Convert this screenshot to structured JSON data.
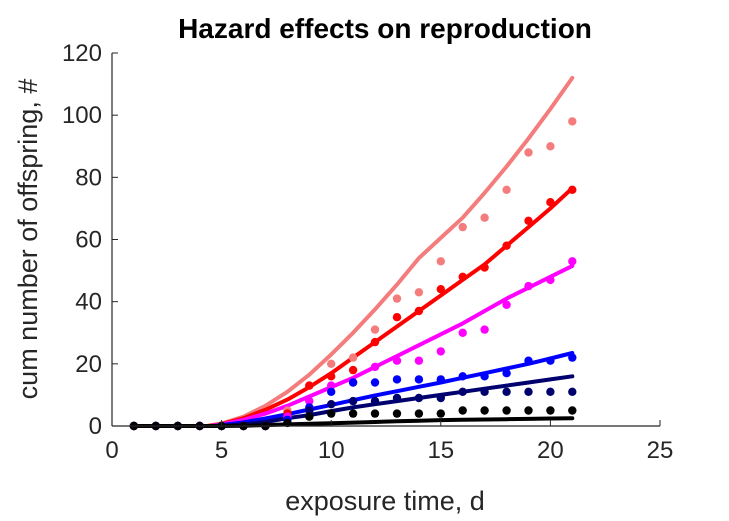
{
  "chart_data": {
    "type": "scatter",
    "title": "Hazard effects on reproduction",
    "xlabel": "exposure time, d",
    "ylabel": "cum number of offspring, #",
    "xlim": [
      0,
      25
    ],
    "ylim": [
      0,
      120
    ],
    "xticks": [
      0,
      5,
      10,
      15,
      20,
      25
    ],
    "yticks": [
      0,
      20,
      40,
      60,
      80,
      100,
      120
    ],
    "grid": false,
    "legend": "none",
    "series": [
      {
        "color": "#f47c7c",
        "points": [
          [
            1,
            0
          ],
          [
            2,
            0
          ],
          [
            3,
            0
          ],
          [
            4,
            0
          ],
          [
            5,
            0
          ],
          [
            6,
            0
          ],
          [
            7,
            0
          ],
          [
            8,
            5
          ],
          [
            9,
            13
          ],
          [
            10,
            20
          ],
          [
            11,
            22
          ],
          [
            12,
            31
          ],
          [
            13,
            41
          ],
          [
            14,
            43
          ],
          [
            15,
            53
          ],
          [
            16,
            64
          ],
          [
            17,
            67
          ],
          [
            18,
            76
          ],
          [
            19,
            88
          ],
          [
            20,
            90
          ],
          [
            21,
            98
          ]
        ],
        "fit": [
          [
            1,
            0
          ],
          [
            4.3,
            0
          ],
          [
            5,
            0.8
          ],
          [
            6,
            3
          ],
          [
            7,
            6.5
          ],
          [
            8,
            11
          ],
          [
            9,
            16.5
          ],
          [
            10,
            23
          ],
          [
            11,
            30
          ],
          [
            12,
            37.5
          ],
          [
            13,
            45.5
          ],
          [
            14,
            54
          ],
          [
            15,
            60.5
          ],
          [
            16,
            67
          ],
          [
            17,
            75
          ],
          [
            18,
            83.5
          ],
          [
            19,
            92.5
          ],
          [
            20,
            102
          ],
          [
            21,
            112
          ]
        ]
      },
      {
        "color": "#ff0000",
        "points": [
          [
            1,
            0
          ],
          [
            2,
            0
          ],
          [
            3,
            0
          ],
          [
            4,
            0
          ],
          [
            5,
            0
          ],
          [
            6,
            0
          ],
          [
            7,
            0
          ],
          [
            8,
            4
          ],
          [
            9,
            13
          ],
          [
            10,
            16
          ],
          [
            11,
            18
          ],
          [
            12,
            27
          ],
          [
            13,
            35
          ],
          [
            14,
            37
          ],
          [
            15,
            44
          ],
          [
            16,
            48
          ],
          [
            17,
            51
          ],
          [
            18,
            58
          ],
          [
            19,
            66
          ],
          [
            20,
            72
          ],
          [
            21,
            76
          ]
        ],
        "fit": [
          [
            1,
            0
          ],
          [
            4.4,
            0
          ],
          [
            5,
            0.6
          ],
          [
            6,
            2.5
          ],
          [
            7,
            5.2
          ],
          [
            8,
            8.5
          ],
          [
            9,
            12.5
          ],
          [
            10,
            17
          ],
          [
            11,
            22
          ],
          [
            12,
            27
          ],
          [
            13,
            32
          ],
          [
            14,
            37
          ],
          [
            15,
            42
          ],
          [
            16,
            47
          ],
          [
            17,
            52
          ],
          [
            18,
            58
          ],
          [
            19,
            64
          ],
          [
            20,
            70
          ],
          [
            21,
            76.5
          ]
        ]
      },
      {
        "color": "#ff00ff",
        "points": [
          [
            1,
            0
          ],
          [
            2,
            0
          ],
          [
            3,
            0
          ],
          [
            4,
            0
          ],
          [
            5,
            0
          ],
          [
            6,
            0
          ],
          [
            7,
            0
          ],
          [
            8,
            3
          ],
          [
            9,
            8
          ],
          [
            10,
            13
          ],
          [
            11,
            14
          ],
          [
            12,
            19
          ],
          [
            13,
            21
          ],
          [
            14,
            21
          ],
          [
            15,
            24
          ],
          [
            16,
            30
          ],
          [
            17,
            31
          ],
          [
            18,
            39
          ],
          [
            19,
            45
          ],
          [
            20,
            47
          ],
          [
            21,
            53
          ]
        ],
        "fit": [
          [
            1,
            0
          ],
          [
            4.5,
            0
          ],
          [
            5,
            0.5
          ],
          [
            6,
            2
          ],
          [
            7,
            4
          ],
          [
            8,
            6.5
          ],
          [
            9,
            9.5
          ],
          [
            10,
            12.5
          ],
          [
            11,
            15.5
          ],
          [
            12,
            19
          ],
          [
            13,
            22.5
          ],
          [
            14,
            26
          ],
          [
            15,
            29.5
          ],
          [
            16,
            33
          ],
          [
            17,
            37
          ],
          [
            18,
            41
          ],
          [
            19,
            44.5
          ],
          [
            20,
            48
          ],
          [
            21,
            51.5
          ]
        ]
      },
      {
        "color": "#0000ff",
        "points": [
          [
            1,
            0
          ],
          [
            2,
            0
          ],
          [
            3,
            0
          ],
          [
            4,
            0
          ],
          [
            5,
            0
          ],
          [
            6,
            0
          ],
          [
            7,
            0
          ],
          [
            8,
            2
          ],
          [
            9,
            6
          ],
          [
            10,
            11
          ],
          [
            11,
            14
          ],
          [
            12,
            14
          ],
          [
            13,
            15
          ],
          [
            14,
            15
          ],
          [
            15,
            15
          ],
          [
            16,
            16
          ],
          [
            17,
            16
          ],
          [
            18,
            17
          ],
          [
            19,
            21
          ],
          [
            20,
            21
          ],
          [
            21,
            22
          ]
        ],
        "fit": [
          [
            1,
            0
          ],
          [
            4.7,
            0
          ],
          [
            5,
            0.3
          ],
          [
            6,
            1.2
          ],
          [
            7,
            2.4
          ],
          [
            8,
            3.8
          ],
          [
            9,
            5.3
          ],
          [
            10,
            6.8
          ],
          [
            11,
            8.3
          ],
          [
            12,
            9.8
          ],
          [
            13,
            11.2
          ],
          [
            14,
            12.6
          ],
          [
            15,
            14
          ],
          [
            16,
            15.5
          ],
          [
            17,
            17
          ],
          [
            18,
            18.5
          ],
          [
            19,
            20
          ],
          [
            20,
            21.7
          ],
          [
            21,
            23.5
          ]
        ]
      },
      {
        "color": "#00006e",
        "points": [
          [
            1,
            0
          ],
          [
            2,
            0
          ],
          [
            3,
            0
          ],
          [
            4,
            0
          ],
          [
            5,
            0
          ],
          [
            6,
            0
          ],
          [
            7,
            0
          ],
          [
            8,
            1
          ],
          [
            9,
            5
          ],
          [
            10,
            7
          ],
          [
            11,
            8
          ],
          [
            12,
            8
          ],
          [
            13,
            9
          ],
          [
            14,
            9
          ],
          [
            15,
            9
          ],
          [
            16,
            11
          ],
          [
            17,
            11
          ],
          [
            18,
            11
          ],
          [
            19,
            11
          ],
          [
            20,
            11
          ],
          [
            21,
            11
          ]
        ],
        "fit": [
          [
            1,
            0
          ],
          [
            4.9,
            0
          ],
          [
            6,
            0.5
          ],
          [
            7,
            1.3
          ],
          [
            8,
            2.5
          ],
          [
            9,
            3.5
          ],
          [
            10,
            4.8
          ],
          [
            11,
            6
          ],
          [
            12,
            7
          ],
          [
            13,
            8
          ],
          [
            14,
            9
          ],
          [
            15,
            10
          ],
          [
            16,
            11
          ],
          [
            17,
            12
          ],
          [
            18,
            13
          ],
          [
            19,
            14
          ],
          [
            20,
            15
          ],
          [
            21,
            16
          ]
        ]
      },
      {
        "color": "#000000",
        "points": [
          [
            1,
            0
          ],
          [
            2,
            0
          ],
          [
            3,
            0
          ],
          [
            4,
            0
          ],
          [
            5,
            0
          ],
          [
            6,
            0
          ],
          [
            7,
            0
          ],
          [
            8,
            1
          ],
          [
            9,
            3
          ],
          [
            10,
            4
          ],
          [
            11,
            4
          ],
          [
            12,
            4
          ],
          [
            13,
            4
          ],
          [
            14,
            4
          ],
          [
            15,
            4
          ],
          [
            16,
            5
          ],
          [
            17,
            5
          ],
          [
            18,
            5
          ],
          [
            19,
            5
          ],
          [
            20,
            5
          ],
          [
            21,
            5
          ]
        ],
        "fit": [
          [
            1,
            0
          ],
          [
            5,
            0
          ],
          [
            6,
            0.1
          ],
          [
            7,
            0.3
          ],
          [
            8,
            0.5
          ],
          [
            9,
            0.7
          ],
          [
            10,
            0.9
          ],
          [
            11,
            1.1
          ],
          [
            12,
            1.3
          ],
          [
            13,
            1.5
          ],
          [
            14,
            1.7
          ],
          [
            15,
            1.9
          ],
          [
            16,
            2
          ],
          [
            17,
            2.1
          ],
          [
            18,
            2.2
          ],
          [
            19,
            2.3
          ],
          [
            20,
            2.4
          ],
          [
            21,
            2.5
          ]
        ]
      }
    ]
  }
}
